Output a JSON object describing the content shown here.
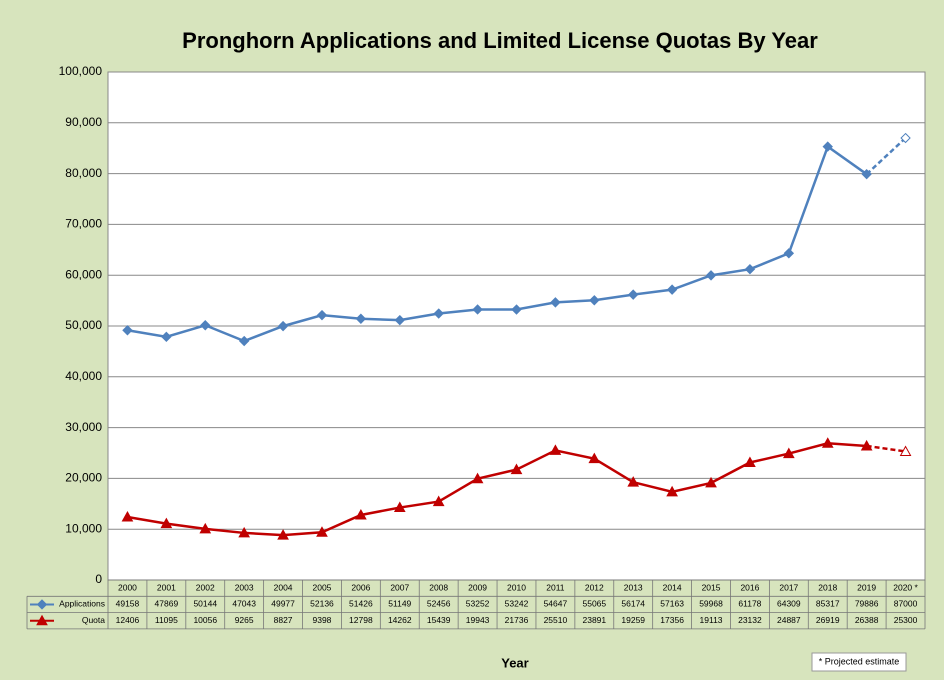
{
  "chart_data": {
    "type": "line",
    "title": "Pronghorn Applications and Limited License Quotas By Year",
    "x_label": "Year",
    "note": "* Projected estimate",
    "categories": [
      "2000",
      "2001",
      "2002",
      "2003",
      "2004",
      "2005",
      "2006",
      "2007",
      "2008",
      "2009",
      "2010",
      "2011",
      "2012",
      "2013",
      "2014",
      "2015",
      "2016",
      "2017",
      "2018",
      "2019",
      "2020 *"
    ],
    "series": [
      {
        "name": "Applications",
        "color": "#4f81bd",
        "marker": "diamond",
        "projected_last": true,
        "values": [
          49158,
          47869,
          50144,
          47043,
          49977,
          52136,
          51426,
          51149,
          52456,
          53252,
          53242,
          54647,
          55065,
          56174,
          57163,
          59968,
          61178,
          64309,
          85317,
          79886,
          87000
        ]
      },
      {
        "name": "Quota",
        "color": "#c00000",
        "marker": "triangle",
        "projected_last": true,
        "values": [
          12406,
          11095,
          10056,
          9265,
          8827,
          9398,
          12798,
          14262,
          15439,
          19943,
          21736,
          25510,
          23891,
          19259,
          17356,
          19113,
          23132,
          24887,
          26919,
          26388,
          25300
        ]
      }
    ],
    "ylim": [
      0,
      100000
    ],
    "yticks": [
      0,
      {
        "value": 10000,
        "label": "10,000"
      },
      {
        "value": 20000,
        "label": "20,000"
      },
      {
        "value": 30000,
        "label": "30,000"
      },
      {
        "value": 40000,
        "label": "40,000"
      },
      {
        "value": 50000,
        "label": "50,000"
      },
      {
        "value": 60000,
        "label": "60,000"
      },
      {
        "value": 70000,
        "label": "70,000"
      },
      {
        "value": 80000,
        "label": "80,000"
      },
      {
        "value": 90000,
        "label": "90,000"
      },
      {
        "value": 100000,
        "label": "100,000"
      }
    ],
    "grid": true
  }
}
